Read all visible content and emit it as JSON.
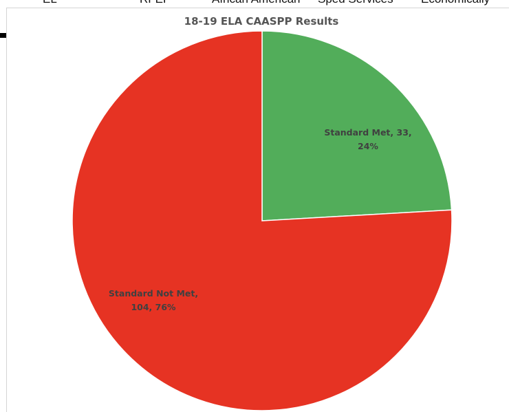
{
  "header_strip": {
    "items": [
      "EL",
      "RFEP",
      "African American",
      "Sped Services",
      "Economically"
    ]
  },
  "chart_data": {
    "type": "pie",
    "title": "18-19 ELA CAASPP Results",
    "slices": [
      {
        "label": "Standard Met",
        "value": 33,
        "percent": 24,
        "color": "#52AD5A",
        "label_lines": [
          "Standard Met, 33,",
          "24%"
        ]
      },
      {
        "label": "Standard Not Met",
        "value": 104,
        "percent": 76,
        "color": "#E63323",
        "label_lines": [
          "Standard Not Met,",
          "104, 76%"
        ]
      }
    ],
    "start_angle_deg": 0,
    "direction": "clockwise",
    "legend": "none",
    "data_labels": "inside"
  }
}
